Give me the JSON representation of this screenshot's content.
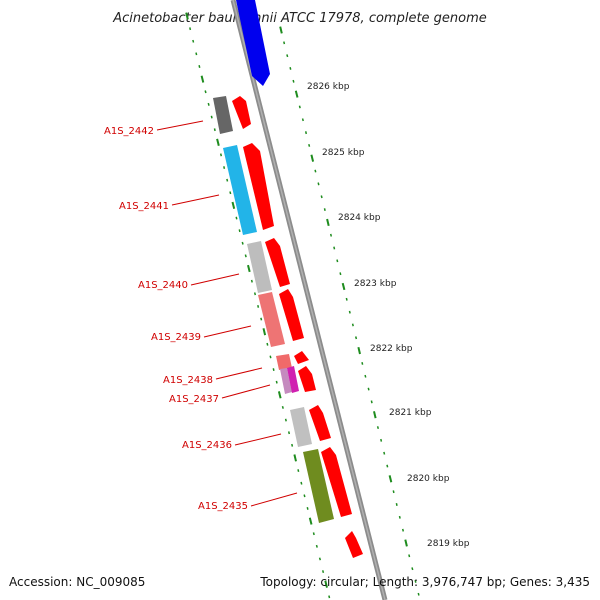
{
  "title": "Acinetobacter baumannii ATCC 17978, complete genome",
  "footer": {
    "accession": "Accession: NC_009085",
    "topology": "Topology: circular; Length: 3,976,747 bp; Genes: 3,435"
  },
  "colors": {
    "backbone": "#8c8c8c",
    "tick": "#1e8c1e",
    "label": "#d00000",
    "forward_cds": "#ff0000"
  },
  "kbp_labels": [
    "2826 kbp",
    "2825 kbp",
    "2824 kbp",
    "2823 kbp",
    "2822 kbp",
    "2821 kbp",
    "2820 kbp",
    "2819 kbp"
  ],
  "genes": [
    {
      "name": "A1S_2442",
      "color": "#666666"
    },
    {
      "name": "A1S_2441",
      "color": "#22b4e8"
    },
    {
      "name": "A1S_2440",
      "color": "#bdbdbd"
    },
    {
      "name": "A1S_2439",
      "color": "#ee7474"
    },
    {
      "name": "A1S_2438",
      "color": "#f06a6a"
    },
    {
      "name": "A1S_2437",
      "color": "#d020b0"
    },
    {
      "name": "A1S_2436",
      "color": "#c0c0c0"
    },
    {
      "name": "A1S_2435",
      "color": "#6f8c1f"
    }
  ]
}
